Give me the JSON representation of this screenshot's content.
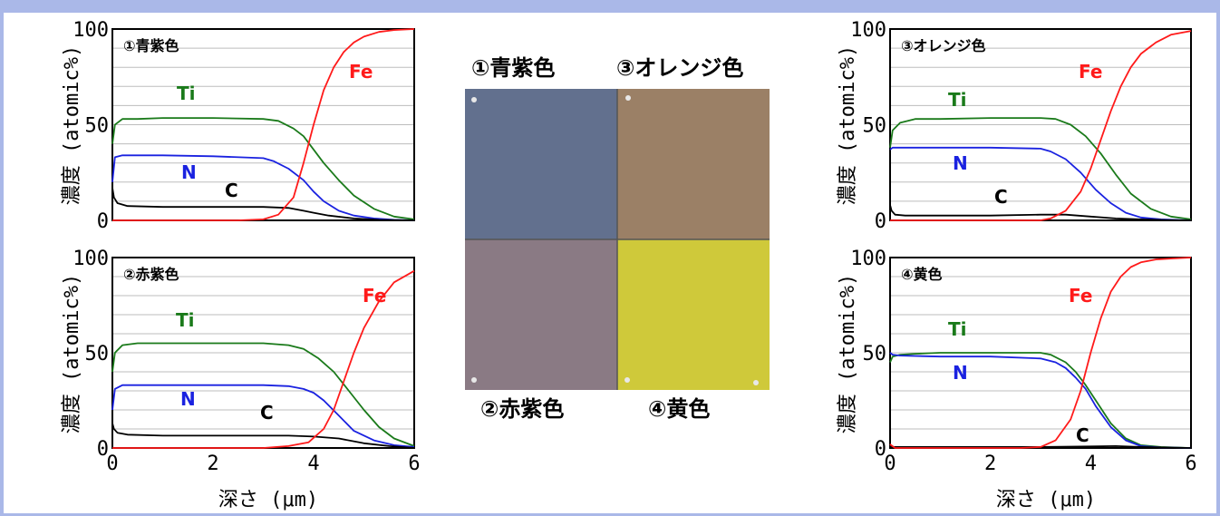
{
  "colors": {
    "Ti": "#1a7a1a",
    "N": "#1a22e0",
    "C": "#000000",
    "Fe": "#ff1a1a",
    "frame": "#aab8e8"
  },
  "axes": {
    "ylabel": "濃度 (atomic%)",
    "xlabel": "深さ (μm)",
    "xlim": [
      0,
      6
    ],
    "ylim": [
      0,
      100
    ],
    "xticks": [
      "0",
      "2",
      "4",
      "6"
    ],
    "yticks": [
      "0",
      "50",
      "100"
    ]
  },
  "photo": {
    "labels": [
      "①青紫色",
      "③オレンジ色",
      "②赤紫色",
      "④黄色"
    ],
    "colors": [
      "#62708e",
      "#9b8066",
      "#8a7a84",
      "#cfc93a"
    ]
  },
  "chart_data": [
    {
      "type": "line",
      "title": "①青紫色",
      "xlim": [
        0,
        6
      ],
      "ylim": [
        0,
        100
      ],
      "series": [
        {
          "name": "Ti",
          "x": [
            0,
            0.05,
            0.2,
            0.5,
            1,
            2,
            3,
            3.3,
            3.6,
            3.8,
            4.0,
            4.2,
            4.5,
            4.8,
            5.2,
            5.6,
            6
          ],
          "y": [
            40,
            50,
            53,
            53,
            53.5,
            53.5,
            53,
            52,
            48,
            44,
            37,
            30,
            21,
            13,
            6,
            2,
            0.5
          ]
        },
        {
          "name": "N",
          "x": [
            0,
            0.05,
            0.2,
            1,
            2,
            3,
            3.2,
            3.5,
            3.8,
            4.0,
            4.2,
            4.5,
            4.8,
            5.2,
            5.6,
            6
          ],
          "y": [
            20,
            33,
            34,
            34,
            33.5,
            32.5,
            31,
            27,
            21,
            15,
            10,
            5,
            2.5,
            1,
            0.3,
            0
          ]
        },
        {
          "name": "C",
          "x": [
            0,
            0.03,
            0.1,
            0.3,
            1,
            2,
            3,
            3.5,
            3.8,
            4.0,
            4.3,
            4.8,
            5.3,
            6
          ],
          "y": [
            17,
            12,
            9,
            7.5,
            7,
            7,
            7,
            6.5,
            5,
            4,
            2.5,
            1,
            0.3,
            0
          ]
        },
        {
          "name": "Fe",
          "x": [
            0,
            2.5,
            3.0,
            3.3,
            3.6,
            3.8,
            4.0,
            4.2,
            4.4,
            4.6,
            4.8,
            5.0,
            5.3,
            5.6,
            6
          ],
          "y": [
            0,
            0,
            0.5,
            3,
            12,
            30,
            50,
            68,
            80,
            88,
            93,
            96,
            98.5,
            99.5,
            100
          ]
        }
      ]
    },
    {
      "type": "line",
      "title": "②赤紫色",
      "xlim": [
        0,
        6
      ],
      "ylim": [
        0,
        100
      ],
      "series": [
        {
          "name": "Ti",
          "x": [
            0,
            0.05,
            0.2,
            0.5,
            1,
            2,
            3,
            3.5,
            3.8,
            4.1,
            4.4,
            4.7,
            5.0,
            5.3,
            5.6,
            6
          ],
          "y": [
            40,
            50,
            54,
            55,
            55,
            55,
            55,
            54,
            52,
            47,
            40,
            30,
            20,
            11,
            5,
            1
          ]
        },
        {
          "name": "N",
          "x": [
            0,
            0.05,
            0.2,
            1,
            2,
            3,
            3.5,
            3.8,
            4.0,
            4.2,
            4.5,
            4.8,
            5.2,
            5.6,
            6
          ],
          "y": [
            20,
            31,
            33,
            33,
            33,
            33,
            32.5,
            31,
            29,
            25,
            17,
            9,
            4,
            1.5,
            0.5
          ]
        },
        {
          "name": "C",
          "x": [
            0,
            0.03,
            0.1,
            0.3,
            1,
            2,
            3,
            3.5,
            4.0,
            4.5,
            5.0,
            5.5,
            6
          ],
          "y": [
            13,
            10,
            8,
            7,
            6.5,
            6.5,
            6.5,
            6.5,
            6,
            5,
            2.5,
            1,
            0
          ]
        },
        {
          "name": "Fe",
          "x": [
            0,
            3.0,
            3.5,
            3.9,
            4.2,
            4.4,
            4.6,
            4.8,
            5.0,
            5.3,
            5.6,
            6
          ],
          "y": [
            0,
            0,
            1,
            3,
            10,
            20,
            35,
            50,
            63,
            77,
            87,
            93
          ]
        }
      ]
    },
    {
      "type": "line",
      "title": "③オレンジ色",
      "xlim": [
        0,
        6
      ],
      "ylim": [
        0,
        100
      ],
      "series": [
        {
          "name": "Ti",
          "x": [
            0,
            0.05,
            0.2,
            0.5,
            1,
            2,
            3,
            3.3,
            3.6,
            3.9,
            4.2,
            4.5,
            4.8,
            5.2,
            5.6,
            6
          ],
          "y": [
            38,
            47,
            51,
            53,
            53,
            53.5,
            53.5,
            53,
            50,
            44,
            35,
            24,
            14,
            6,
            2,
            0.5
          ]
        },
        {
          "name": "N",
          "x": [
            0,
            0.05,
            0.2,
            1,
            2,
            3,
            3.2,
            3.5,
            3.8,
            4.1,
            4.4,
            4.7,
            5.0,
            5.4,
            6
          ],
          "y": [
            37,
            38,
            38,
            38,
            38,
            37.5,
            36,
            32,
            25,
            16,
            9,
            4,
            1.5,
            0.5,
            0
          ]
        },
        {
          "name": "C",
          "x": [
            0,
            0.03,
            0.1,
            0.3,
            1,
            2,
            3,
            3.5,
            4.0,
            4.5,
            5.0,
            5.5,
            6
          ],
          "y": [
            8,
            5,
            3,
            2.5,
            2.5,
            2.5,
            3,
            3,
            2,
            1,
            0.5,
            0.2,
            0
          ]
        },
        {
          "name": "Fe",
          "x": [
            0,
            3.0,
            3.2,
            3.5,
            3.8,
            4.0,
            4.2,
            4.4,
            4.6,
            4.8,
            5.0,
            5.3,
            5.6,
            6
          ],
          "y": [
            0,
            0,
            1,
            5,
            15,
            27,
            42,
            57,
            70,
            80,
            87,
            93,
            97,
            99
          ]
        }
      ]
    },
    {
      "type": "line",
      "title": "④黄色",
      "xlim": [
        0,
        6
      ],
      "ylim": [
        0,
        100
      ],
      "series": [
        {
          "name": "Ti",
          "x": [
            0,
            0.05,
            0.2,
            0.5,
            1,
            2,
            3,
            3.2,
            3.5,
            3.7,
            3.9,
            4.1,
            4.4,
            4.7,
            5.0,
            5.4,
            6
          ],
          "y": [
            45,
            48,
            49,
            49.5,
            50,
            50,
            50,
            49,
            45,
            40,
            33,
            25,
            13,
            5,
            1.5,
            0.5,
            0
          ]
        },
        {
          "name": "N",
          "x": [
            0,
            0.05,
            0.2,
            1,
            2,
            3,
            3.3,
            3.5,
            3.7,
            3.9,
            4.1,
            4.4,
            4.7,
            5.0,
            5.4,
            6
          ],
          "y": [
            50,
            49,
            48.5,
            48,
            48,
            47,
            45,
            42,
            37,
            31,
            22,
            11,
            4,
            1,
            0.3,
            0
          ]
        },
        {
          "name": "C",
          "x": [
            0,
            0.1,
            1,
            2,
            3,
            4,
            4.5,
            5,
            6
          ],
          "y": [
            0.5,
            0.5,
            0.5,
            0.5,
            0.5,
            0.8,
            1,
            0.5,
            0
          ]
        },
        {
          "name": "Fe",
          "x": [
            0,
            0.02,
            0.1,
            2.6,
            3.0,
            3.3,
            3.6,
            3.8,
            4.0,
            4.2,
            4.4,
            4.6,
            4.8,
            5.0,
            5.3,
            5.6,
            6
          ],
          "y": [
            2,
            1.5,
            0,
            0,
            0.5,
            4,
            15,
            30,
            50,
            68,
            82,
            90,
            95,
            97.5,
            99,
            99.5,
            100
          ]
        }
      ]
    }
  ]
}
